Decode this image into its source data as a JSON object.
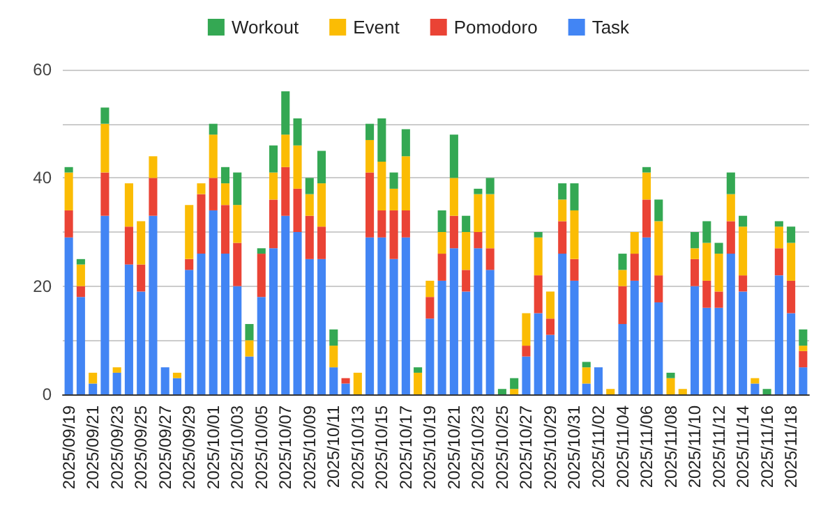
{
  "chart_data": {
    "type": "bar",
    "stacked": true,
    "categories": [
      "2025/09/19",
      null,
      "2025/09/21",
      null,
      "2025/09/23",
      null,
      "2025/09/25",
      null,
      "2025/09/27",
      null,
      "2025/09/29",
      null,
      "2025/10/01",
      null,
      "2025/10/03",
      null,
      "2025/10/05",
      null,
      "2025/10/07",
      null,
      "2025/10/09",
      null,
      "2025/10/11",
      null,
      "2025/10/13",
      null,
      "2025/10/15",
      null,
      "2025/10/17",
      null,
      "2025/10/19",
      null,
      "2025/10/21",
      null,
      "2025/10/23",
      null,
      "2025/10/25",
      null,
      "2025/10/27",
      null,
      "2025/10/29",
      null,
      "2025/10/31",
      null,
      "2025/11/02",
      null,
      "2025/11/04",
      null,
      "2025/11/06",
      null,
      "2025/11/08",
      null,
      "2025/11/10",
      null,
      "2025/11/12",
      null,
      "2025/11/14",
      null,
      "2025/11/16",
      null,
      "2025/11/18",
      null
    ],
    "series": [
      {
        "name": "Task",
        "color": "#4285f4",
        "values": [
          29,
          18,
          2,
          33,
          4,
          24,
          19,
          33,
          5,
          3,
          23,
          26,
          34,
          26,
          20,
          7,
          18,
          27,
          33,
          30,
          25,
          25,
          5,
          2,
          0,
          29,
          29,
          25,
          29,
          0,
          14,
          21,
          27,
          19,
          27,
          23,
          0,
          0,
          7,
          15,
          11,
          26,
          21,
          2,
          5,
          0,
          13,
          21,
          29,
          17,
          0,
          0,
          20,
          16,
          16,
          26,
          19,
          2,
          0,
          22,
          15,
          5
        ]
      },
      {
        "name": "Pomodoro",
        "color": "#ea4335",
        "values": [
          5,
          2,
          0,
          8,
          0,
          7,
          5,
          7,
          0,
          0,
          2,
          11,
          6,
          9,
          8,
          0,
          8,
          9,
          9,
          8,
          8,
          6,
          0,
          1,
          0,
          12,
          5,
          9,
          5,
          0,
          4,
          5,
          6,
          4,
          3,
          4,
          0,
          0,
          2,
          7,
          3,
          6,
          4,
          0,
          0,
          0,
          7,
          5,
          7,
          5,
          0,
          0,
          5,
          5,
          3,
          6,
          3,
          0,
          0,
          5,
          6,
          3
        ]
      },
      {
        "name": "Event",
        "color": "#fbbc04",
        "values": [
          7,
          4,
          2,
          9,
          1,
          8,
          8,
          4,
          0,
          1,
          10,
          2,
          8,
          4,
          7,
          3,
          0,
          5,
          6,
          8,
          4,
          8,
          4,
          0,
          4,
          6,
          9,
          4,
          10,
          4,
          3,
          4,
          7,
          7,
          7,
          10,
          0,
          1,
          6,
          7,
          5,
          4,
          9,
          3,
          0,
          1,
          3,
          4,
          5,
          10,
          3,
          1,
          2,
          7,
          7,
          5,
          9,
          1,
          0,
          4,
          7,
          1
        ]
      },
      {
        "name": "Workout",
        "color": "#34a853",
        "values": [
          1,
          1,
          0,
          3,
          0,
          0,
          0,
          0,
          0,
          0,
          0,
          0,
          2,
          3,
          6,
          3,
          1,
          5,
          8,
          5,
          3,
          6,
          3,
          0,
          0,
          3,
          8,
          3,
          5,
          1,
          0,
          4,
          8,
          3,
          1,
          3,
          1,
          2,
          0,
          1,
          0,
          3,
          5,
          1,
          0,
          0,
          3,
          0,
          1,
          4,
          1,
          0,
          3,
          4,
          2,
          4,
          2,
          0,
          1,
          1,
          3,
          3
        ]
      }
    ],
    "ylim": [
      0,
      60
    ],
    "yticks": [
      0,
      20,
      40,
      60
    ],
    "grid": "y",
    "legend": "top"
  }
}
